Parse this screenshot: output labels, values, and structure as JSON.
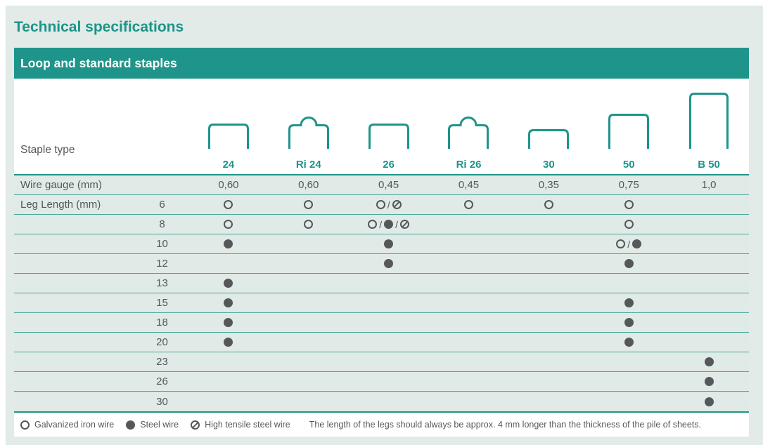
{
  "page_title": "Technical specifications",
  "section_title": "Loop and standard staples",
  "colors": {
    "teal": "#1f948a",
    "teal_text": "#1b948a",
    "panel_bg": "#e2ebe7",
    "row_bg": "#e0eae6",
    "row_line": "#49a69b",
    "text_gray": "#54575a",
    "symbol_gray": "#56575a",
    "white": "#ffffff"
  },
  "table": {
    "staple_type_label": "Staple type",
    "wire_gauge_label": "Wire gauge (mm)",
    "leg_length_label": "Leg Length (mm)",
    "columns": [
      {
        "label": "24",
        "icon": "staple-24-icon",
        "shape": "staple-medium",
        "wire_gauge": "0,60"
      },
      {
        "label": "Ri 24",
        "icon": "staple-ri24-icon",
        "shape": "staple-loop",
        "wire_gauge": "0,60"
      },
      {
        "label": "26",
        "icon": "staple-26-icon",
        "shape": "staple-medium",
        "wire_gauge": "0,45"
      },
      {
        "label": "Ri 26",
        "icon": "staple-ri26-icon",
        "shape": "staple-loop",
        "wire_gauge": "0,45"
      },
      {
        "label": "30",
        "icon": "staple-30-icon",
        "shape": "staple-short",
        "wire_gauge": "0,35"
      },
      {
        "label": "50",
        "icon": "staple-50-icon",
        "shape": "staple-tall",
        "wire_gauge": "0,75"
      },
      {
        "label": "B 50",
        "icon": "staple-b50-icon",
        "shape": "staple-xtall",
        "wire_gauge": "1,0"
      }
    ],
    "leg_rows": [
      {
        "leg": "6",
        "cells": [
          "galvanized",
          "galvanized",
          "galvanized/tensile",
          "galvanized",
          "galvanized",
          "galvanized",
          ""
        ]
      },
      {
        "leg": "8",
        "cells": [
          "galvanized",
          "galvanized",
          "galvanized/steel/tensile",
          "",
          "",
          "galvanized",
          ""
        ]
      },
      {
        "leg": "10",
        "cells": [
          "steel",
          "",
          "steel",
          "",
          "",
          "galvanized/steel",
          ""
        ]
      },
      {
        "leg": "12",
        "cells": [
          "",
          "",
          "steel",
          "",
          "",
          "steel",
          ""
        ]
      },
      {
        "leg": "13",
        "cells": [
          "steel",
          "",
          "",
          "",
          "",
          "",
          ""
        ]
      },
      {
        "leg": "15",
        "cells": [
          "steel",
          "",
          "",
          "",
          "",
          "steel",
          ""
        ]
      },
      {
        "leg": "18",
        "cells": [
          "steel",
          "",
          "",
          "",
          "",
          "steel",
          ""
        ]
      },
      {
        "leg": "20",
        "cells": [
          "steel",
          "",
          "",
          "",
          "",
          "steel",
          ""
        ]
      },
      {
        "leg": "23",
        "cells": [
          "",
          "",
          "",
          "",
          "",
          "",
          "steel"
        ]
      },
      {
        "leg": "26",
        "cells": [
          "",
          "",
          "",
          "",
          "",
          "",
          "steel"
        ]
      },
      {
        "leg": "30",
        "cells": [
          "",
          "",
          "",
          "",
          "",
          "",
          "steel"
        ]
      }
    ]
  },
  "legend": {
    "items": [
      {
        "symbol": "galvanized",
        "icon": "open-circle-icon",
        "label": "Galvanized iron wire"
      },
      {
        "symbol": "steel",
        "icon": "filled-circle-icon",
        "label": "Steel wire"
      },
      {
        "symbol": "tensile",
        "icon": "slashed-circle-icon",
        "label": "High tensile steel wire"
      }
    ],
    "note": "The length of the legs should always be approx. 4 mm longer than the thickness of the pile of sheets."
  }
}
